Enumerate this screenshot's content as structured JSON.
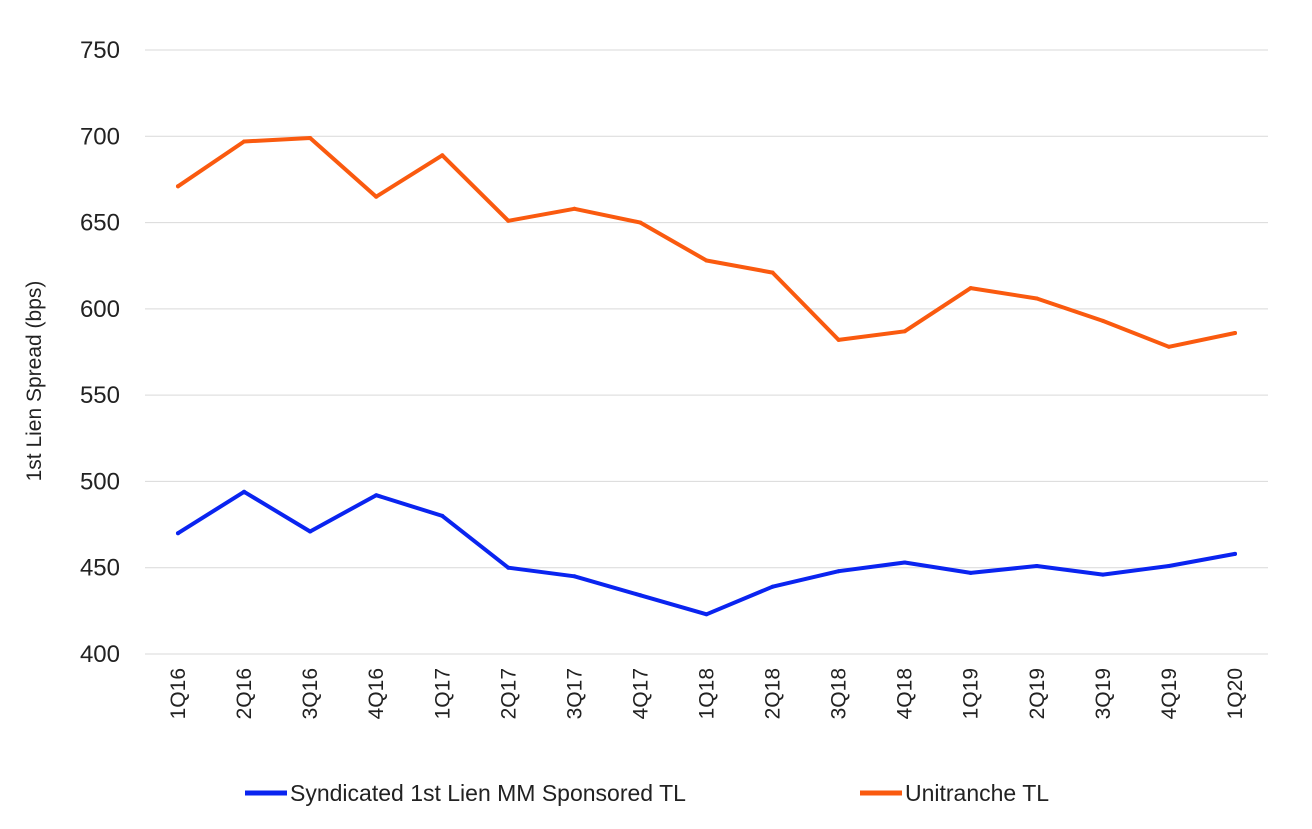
{
  "chart_data": {
    "type": "line",
    "title": "",
    "xlabel": "",
    "ylabel": "1st Lien Spread (bps)",
    "ylim": [
      400,
      750
    ],
    "yticks": [
      400,
      450,
      500,
      550,
      600,
      650,
      700,
      750
    ],
    "grid": true,
    "legend_position": "bottom",
    "categories": [
      "1Q16",
      "2Q16",
      "3Q16",
      "4Q16",
      "1Q17",
      "2Q17",
      "3Q17",
      "4Q17",
      "1Q18",
      "2Q18",
      "3Q18",
      "4Q18",
      "1Q19",
      "2Q19",
      "3Q19",
      "4Q19",
      "1Q20"
    ],
    "series": [
      {
        "name": "Syndicated 1st Lien MM Sponsored TL",
        "color": "#0a24f0",
        "values": [
          470,
          494,
          471,
          492,
          480,
          450,
          445,
          434,
          423,
          439,
          448,
          453,
          447,
          451,
          446,
          451,
          458
        ]
      },
      {
        "name": "Unitranche TL",
        "color": "#fa5a0f",
        "values": [
          671,
          697,
          699,
          665,
          689,
          651,
          658,
          650,
          628,
          621,
          582,
          587,
          612,
          606,
          593,
          578,
          586
        ]
      }
    ]
  }
}
